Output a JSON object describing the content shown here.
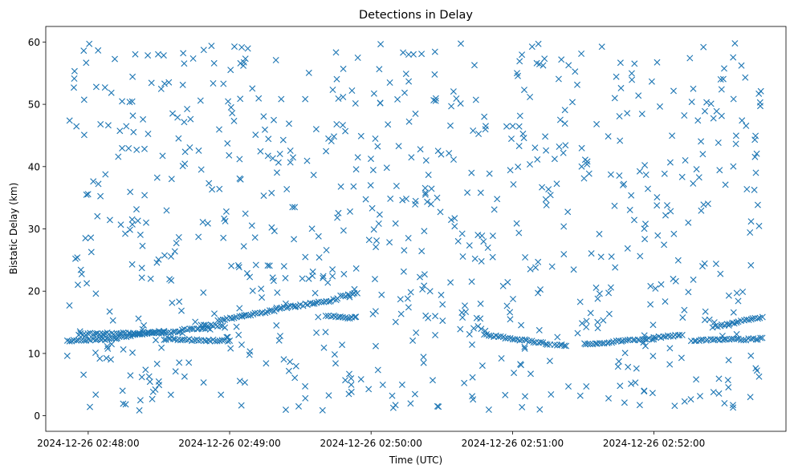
{
  "chart_data": {
    "type": "scatter",
    "title": "Detections in Delay",
    "xlabel": "Time (UTC)",
    "ylabel": "Bistatic Delay (km)",
    "marker": "x",
    "color": "#1f77b4",
    "x_unit": "seconds after 2024-12-26 02:47:00",
    "xlim": [
      42,
      356
    ],
    "ylim": [
      -2.5,
      62.5
    ],
    "x_ticks": [
      60,
      120,
      180,
      240,
      300
    ],
    "x_tick_labels": [
      "2024-12-26 02:48:00",
      "2024-12-26 02:49:00",
      "2024-12-26 02:50:00",
      "2024-12-26 02:51:00",
      "2024-12-26 02:52:00"
    ],
    "y_ticks": [
      0,
      10,
      20,
      30,
      40,
      50,
      60
    ],
    "y_tick_labels": [
      "0",
      "10",
      "20",
      "30",
      "40",
      "50",
      "60"
    ],
    "time_range": [
      51,
      346
    ],
    "track_segments": [
      {
        "t": [
          51,
          72
        ],
        "y": [
          12.0,
          12.4
        ]
      },
      {
        "t": [
          72,
          92
        ],
        "y": [
          12.5,
          13.6
        ]
      },
      {
        "t": [
          56,
          100
        ],
        "y": [
          13.1,
          13.4
        ]
      },
      {
        "t": [
          100,
          112
        ],
        "y": [
          13.8,
          14.0
        ]
      },
      {
        "t": [
          92,
          120
        ],
        "y": [
          12.3,
          12.0
        ]
      },
      {
        "t": [
          108,
          118
        ],
        "y": [
          14.6,
          14.3
        ]
      },
      {
        "t": [
          115,
          140
        ],
        "y": [
          15.3,
          17.0
        ]
      },
      {
        "t": [
          140,
          148
        ],
        "y": [
          17.3,
          17.6
        ]
      },
      {
        "t": [
          148,
          166
        ],
        "y": [
          17.6,
          18.7
        ]
      },
      {
        "t": [
          161,
          173
        ],
        "y": [
          16.0,
          15.7
        ]
      },
      {
        "t": [
          167,
          174
        ],
        "y": [
          19.2,
          19.6
        ]
      },
      {
        "t": [
          228,
          256
        ],
        "y": [
          13.0,
          11.5
        ]
      },
      {
        "t": [
          258,
          263
        ],
        "y": [
          11.3,
          11.3
        ]
      },
      {
        "t": [
          271,
          300
        ],
        "y": [
          11.5,
          12.4
        ]
      },
      {
        "t": [
          300,
          312
        ],
        "y": [
          12.5,
          13.0
        ]
      },
      {
        "t": [
          316,
          334
        ],
        "y": [
          12.0,
          12.3
        ]
      },
      {
        "t": [
          325,
          346
        ],
        "y": [
          14.3,
          15.8
        ]
      },
      {
        "t": [
          335,
          346
        ],
        "y": [
          12.2,
          12.4
        ]
      }
    ],
    "noise_points": 780,
    "noise_y_range": [
      0.8,
      59.8
    ],
    "noise_seed": 20241226
  }
}
